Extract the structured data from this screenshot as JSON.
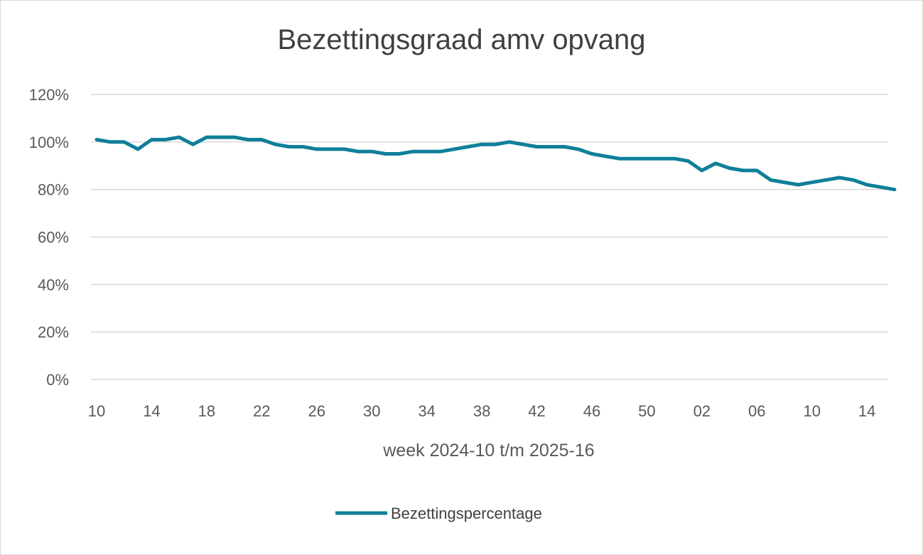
{
  "chart_data": {
    "type": "line",
    "title": "Bezettingsgraad amv opvang",
    "xlabel": "week 2024-10 t/m 2025-16",
    "ylabel": "",
    "ylim": [
      0,
      1.2
    ],
    "yticks": [
      "0%",
      "20%",
      "40%",
      "60%",
      "80%",
      "100%",
      "120%"
    ],
    "x": [
      "10",
      "11",
      "12",
      "13",
      "14",
      "15",
      "16",
      "17",
      "18",
      "19",
      "20",
      "21",
      "22",
      "23",
      "24",
      "25",
      "26",
      "27",
      "28",
      "29",
      "30",
      "31",
      "32",
      "33",
      "34",
      "35",
      "36",
      "37",
      "38",
      "39",
      "40",
      "41",
      "42",
      "43",
      "44",
      "45",
      "46",
      "47",
      "48",
      "49",
      "50",
      "51",
      "52",
      "01",
      "02",
      "03",
      "04",
      "05",
      "06",
      "07",
      "08",
      "09",
      "10",
      "11",
      "12",
      "13",
      "14",
      "15",
      "16"
    ],
    "xtick_labels": [
      "10",
      "14",
      "18",
      "22",
      "26",
      "30",
      "34",
      "38",
      "42",
      "46",
      "50",
      "02",
      "06",
      "10",
      "14"
    ],
    "series": [
      {
        "name": "Bezettingspercentage",
        "color": "#0f7f9a",
        "values": [
          1.01,
          1.0,
          1.0,
          0.97,
          1.01,
          1.01,
          1.02,
          0.99,
          1.02,
          1.02,
          1.02,
          1.01,
          1.01,
          0.99,
          0.98,
          0.98,
          0.97,
          0.97,
          0.97,
          0.96,
          0.96,
          0.95,
          0.95,
          0.96,
          0.96,
          0.96,
          0.97,
          0.98,
          0.99,
          0.99,
          1.0,
          0.99,
          0.98,
          0.98,
          0.98,
          0.97,
          0.95,
          0.94,
          0.93,
          0.93,
          0.93,
          0.93,
          0.93,
          0.92,
          0.88,
          0.91,
          0.89,
          0.88,
          0.88,
          0.84,
          0.83,
          0.82,
          0.83,
          0.84,
          0.85,
          0.84,
          0.82,
          0.81,
          0.8
        ]
      }
    ],
    "grid": true,
    "legend_position": "bottom"
  }
}
